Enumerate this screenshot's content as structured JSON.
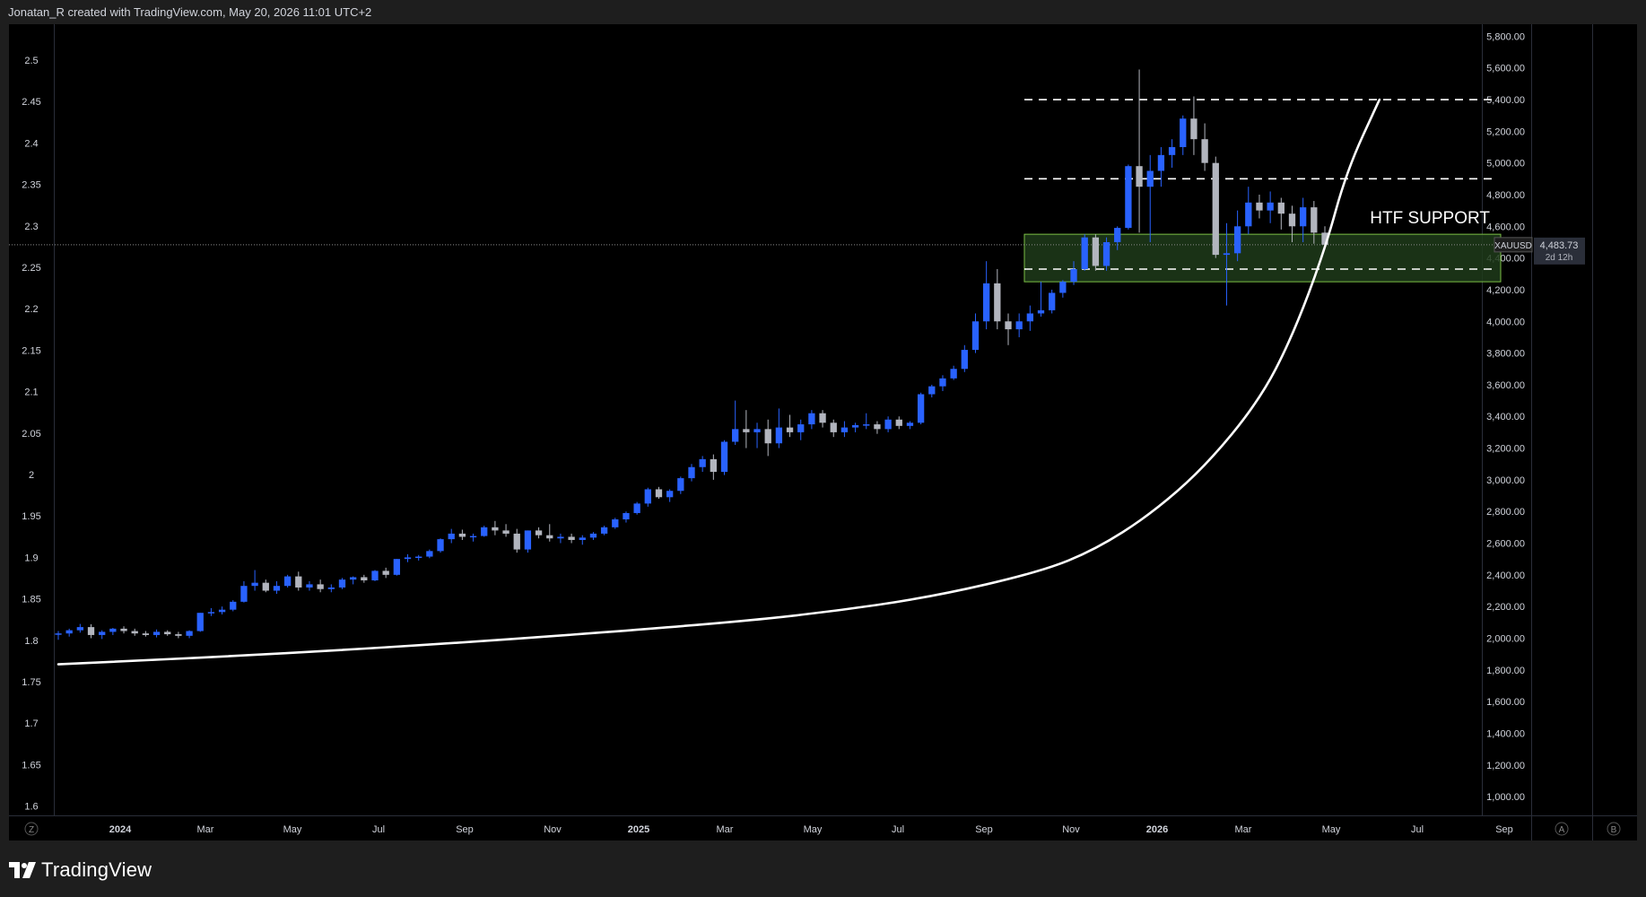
{
  "header": {
    "text": "Jonatan_R created with TradingView.com, May 20, 2026 11:01 UTC+2"
  },
  "footer": {
    "logo_text": "TradingView"
  },
  "chart_data": {
    "type": "candlestick",
    "symbol": "XAUUSD",
    "last_price": "4,483.73",
    "countdown": "2d 12h",
    "annotation": "HTF SUPPORT",
    "x_ticks": [
      "2024",
      "Mar",
      "May",
      "Jul",
      "Sep",
      "Nov",
      "2025",
      "Mar",
      "May",
      "Jul",
      "Sep",
      "Nov",
      "2026",
      "Mar",
      "May",
      "Jul",
      "Sep"
    ],
    "left_axis": {
      "ticks": [
        "2.5",
        "2.45",
        "2.4",
        "2.35",
        "2.3",
        "2.25",
        "2.2",
        "2.15",
        "2.1",
        "2.05",
        "2",
        "1.95",
        "1.9",
        "1.85",
        "1.8",
        "1.75",
        "1.7",
        "1.65",
        "1.6"
      ],
      "scale": "log10"
    },
    "right_axis": {
      "ticks": [
        "5,800.00",
        "5,600.00",
        "5,400.00",
        "5,200.00",
        "5,000.00",
        "4,800.00",
        "4,600.00",
        "4,400.00",
        "4,200.00",
        "4,000.00",
        "3,800.00",
        "3,600.00",
        "3,400.00",
        "3,200.00",
        "3,000.00",
        "2,800.00",
        "2,600.00",
        "2,400.00",
        "2,200.00",
        "2,000.00",
        "1,800.00",
        "1,600.00",
        "1,400.00",
        "1,200.00",
        "1,000.00"
      ]
    },
    "bottom_left_button": "Z",
    "bottom_right_buttons": [
      "A",
      "B"
    ],
    "candles": [
      {
        "o": 2024,
        "h": 2045,
        "l": 1990,
        "c": 2030
      },
      {
        "o": 2030,
        "h": 2060,
        "l": 2010,
        "c": 2050
      },
      {
        "o": 2050,
        "h": 2090,
        "l": 2035,
        "c": 2070
      },
      {
        "o": 2070,
        "h": 2088,
        "l": 2000,
        "c": 2020
      },
      {
        "o": 2020,
        "h": 2050,
        "l": 1995,
        "c": 2040
      },
      {
        "o": 2040,
        "h": 2065,
        "l": 2020,
        "c": 2060
      },
      {
        "o": 2060,
        "h": 2075,
        "l": 2030,
        "c": 2045
      },
      {
        "o": 2045,
        "h": 2060,
        "l": 2015,
        "c": 2030
      },
      {
        "o": 2030,
        "h": 2045,
        "l": 2010,
        "c": 2020
      },
      {
        "o": 2020,
        "h": 2055,
        "l": 2005,
        "c": 2040
      },
      {
        "o": 2040,
        "h": 2050,
        "l": 2015,
        "c": 2025
      },
      {
        "o": 2025,
        "h": 2040,
        "l": 2000,
        "c": 2015
      },
      {
        "o": 2015,
        "h": 2050,
        "l": 2000,
        "c": 2045
      },
      {
        "o": 2045,
        "h": 2160,
        "l": 2040,
        "c": 2160
      },
      {
        "o": 2160,
        "h": 2190,
        "l": 2140,
        "c": 2165
      },
      {
        "o": 2165,
        "h": 2200,
        "l": 2150,
        "c": 2180
      },
      {
        "o": 2180,
        "h": 2240,
        "l": 2170,
        "c": 2230
      },
      {
        "o": 2230,
        "h": 2360,
        "l": 2225,
        "c": 2330
      },
      {
        "o": 2330,
        "h": 2430,
        "l": 2300,
        "c": 2350
      },
      {
        "o": 2350,
        "h": 2370,
        "l": 2290,
        "c": 2300
      },
      {
        "o": 2300,
        "h": 2360,
        "l": 2280,
        "c": 2330
      },
      {
        "o": 2330,
        "h": 2400,
        "l": 2320,
        "c": 2390
      },
      {
        "o": 2390,
        "h": 2420,
        "l": 2300,
        "c": 2320
      },
      {
        "o": 2320,
        "h": 2360,
        "l": 2300,
        "c": 2340
      },
      {
        "o": 2340,
        "h": 2370,
        "l": 2290,
        "c": 2310
      },
      {
        "o": 2310,
        "h": 2340,
        "l": 2290,
        "c": 2320
      },
      {
        "o": 2320,
        "h": 2380,
        "l": 2310,
        "c": 2370
      },
      {
        "o": 2370,
        "h": 2390,
        "l": 2340,
        "c": 2385
      },
      {
        "o": 2385,
        "h": 2400,
        "l": 2350,
        "c": 2365
      },
      {
        "o": 2365,
        "h": 2430,
        "l": 2360,
        "c": 2425
      },
      {
        "o": 2425,
        "h": 2445,
        "l": 2380,
        "c": 2400
      },
      {
        "o": 2400,
        "h": 2500,
        "l": 2395,
        "c": 2500
      },
      {
        "o": 2500,
        "h": 2530,
        "l": 2480,
        "c": 2510
      },
      {
        "o": 2510,
        "h": 2525,
        "l": 2490,
        "c": 2515
      },
      {
        "o": 2515,
        "h": 2560,
        "l": 2505,
        "c": 2550
      },
      {
        "o": 2550,
        "h": 2630,
        "l": 2540,
        "c": 2625
      },
      {
        "o": 2625,
        "h": 2690,
        "l": 2600,
        "c": 2660
      },
      {
        "o": 2660,
        "h": 2685,
        "l": 2620,
        "c": 2640
      },
      {
        "o": 2640,
        "h": 2660,
        "l": 2610,
        "c": 2645
      },
      {
        "o": 2645,
        "h": 2710,
        "l": 2640,
        "c": 2700
      },
      {
        "o": 2700,
        "h": 2740,
        "l": 2650,
        "c": 2680
      },
      {
        "o": 2680,
        "h": 2720,
        "l": 2640,
        "c": 2660
      },
      {
        "o": 2660,
        "h": 2690,
        "l": 2540,
        "c": 2560
      },
      {
        "o": 2560,
        "h": 2680,
        "l": 2540,
        "c": 2680
      },
      {
        "o": 2680,
        "h": 2700,
        "l": 2630,
        "c": 2650
      },
      {
        "o": 2650,
        "h": 2720,
        "l": 2610,
        "c": 2630
      },
      {
        "o": 2630,
        "h": 2660,
        "l": 2600,
        "c": 2640
      },
      {
        "o": 2640,
        "h": 2660,
        "l": 2600,
        "c": 2620
      },
      {
        "o": 2620,
        "h": 2650,
        "l": 2590,
        "c": 2635
      },
      {
        "o": 2635,
        "h": 2670,
        "l": 2620,
        "c": 2660
      },
      {
        "o": 2660,
        "h": 2710,
        "l": 2650,
        "c": 2700
      },
      {
        "o": 2700,
        "h": 2760,
        "l": 2690,
        "c": 2750
      },
      {
        "o": 2750,
        "h": 2800,
        "l": 2730,
        "c": 2790
      },
      {
        "o": 2790,
        "h": 2860,
        "l": 2780,
        "c": 2850
      },
      {
        "o": 2850,
        "h": 2950,
        "l": 2830,
        "c": 2940
      },
      {
        "o": 2940,
        "h": 2955,
        "l": 2880,
        "c": 2890
      },
      {
        "o": 2890,
        "h": 2940,
        "l": 2860,
        "c": 2930
      },
      {
        "o": 2930,
        "h": 3020,
        "l": 2910,
        "c": 3010
      },
      {
        "o": 3010,
        "h": 3100,
        "l": 2990,
        "c": 3080
      },
      {
        "o": 3080,
        "h": 3150,
        "l": 3050,
        "c": 3130
      },
      {
        "o": 3130,
        "h": 3160,
        "l": 3000,
        "c": 3050
      },
      {
        "o": 3050,
        "h": 3250,
        "l": 3030,
        "c": 3240
      },
      {
        "o": 3240,
        "h": 3500,
        "l": 3220,
        "c": 3320
      },
      {
        "o": 3320,
        "h": 3440,
        "l": 3200,
        "c": 3300
      },
      {
        "o": 3300,
        "h": 3360,
        "l": 3200,
        "c": 3320
      },
      {
        "o": 3320,
        "h": 3380,
        "l": 3150,
        "c": 3230
      },
      {
        "o": 3230,
        "h": 3450,
        "l": 3200,
        "c": 3330
      },
      {
        "o": 3330,
        "h": 3410,
        "l": 3270,
        "c": 3300
      },
      {
        "o": 3300,
        "h": 3380,
        "l": 3250,
        "c": 3350
      },
      {
        "o": 3350,
        "h": 3440,
        "l": 3320,
        "c": 3420
      },
      {
        "o": 3420,
        "h": 3440,
        "l": 3330,
        "c": 3360
      },
      {
        "o": 3360,
        "h": 3380,
        "l": 3270,
        "c": 3300
      },
      {
        "o": 3300,
        "h": 3370,
        "l": 3270,
        "c": 3330
      },
      {
        "o": 3330,
        "h": 3360,
        "l": 3300,
        "c": 3345
      },
      {
        "o": 3345,
        "h": 3420,
        "l": 3320,
        "c": 3350
      },
      {
        "o": 3350,
        "h": 3370,
        "l": 3290,
        "c": 3320
      },
      {
        "o": 3320,
        "h": 3400,
        "l": 3300,
        "c": 3380
      },
      {
        "o": 3380,
        "h": 3400,
        "l": 3320,
        "c": 3340
      },
      {
        "o": 3340,
        "h": 3370,
        "l": 3320,
        "c": 3360
      },
      {
        "o": 3360,
        "h": 3550,
        "l": 3350,
        "c": 3540
      },
      {
        "o": 3540,
        "h": 3600,
        "l": 3520,
        "c": 3590
      },
      {
        "o": 3590,
        "h": 3660,
        "l": 3560,
        "c": 3640
      },
      {
        "o": 3640,
        "h": 3720,
        "l": 3630,
        "c": 3700
      },
      {
        "o": 3700,
        "h": 3850,
        "l": 3680,
        "c": 3820
      },
      {
        "o": 3820,
        "h": 4050,
        "l": 3800,
        "c": 4000
      },
      {
        "o": 4000,
        "h": 4380,
        "l": 3950,
        "c": 4240
      },
      {
        "o": 4240,
        "h": 4330,
        "l": 3950,
        "c": 4000
      },
      {
        "o": 4000,
        "h": 4050,
        "l": 3850,
        "c": 3950
      },
      {
        "o": 3950,
        "h": 4050,
        "l": 3900,
        "c": 4000
      },
      {
        "o": 4000,
        "h": 4100,
        "l": 3940,
        "c": 4050
      },
      {
        "o": 4050,
        "h": 4250,
        "l": 4030,
        "c": 4070
      },
      {
        "o": 4070,
        "h": 4200,
        "l": 4050,
        "c": 4180
      },
      {
        "o": 4180,
        "h": 4260,
        "l": 4150,
        "c": 4250
      },
      {
        "o": 4250,
        "h": 4380,
        "l": 4230,
        "c": 4330
      },
      {
        "o": 4330,
        "h": 4550,
        "l": 4320,
        "c": 4530
      },
      {
        "o": 4530,
        "h": 4550,
        "l": 4320,
        "c": 4350
      },
      {
        "o": 4350,
        "h": 4530,
        "l": 4320,
        "c": 4500
      },
      {
        "o": 4500,
        "h": 4600,
        "l": 4450,
        "c": 4590
      },
      {
        "o": 4590,
        "h": 4990,
        "l": 4580,
        "c": 4980
      },
      {
        "o": 4980,
        "h": 5590,
        "l": 4560,
        "c": 4850
      },
      {
        "o": 4850,
        "h": 5050,
        "l": 4500,
        "c": 4950
      },
      {
        "o": 4950,
        "h": 5100,
        "l": 4850,
        "c": 5050
      },
      {
        "o": 5050,
        "h": 5150,
        "l": 4970,
        "c": 5100
      },
      {
        "o": 5100,
        "h": 5300,
        "l": 5050,
        "c": 5280
      },
      {
        "o": 5280,
        "h": 5420,
        "l": 5050,
        "c": 5150
      },
      {
        "o": 5150,
        "h": 5250,
        "l": 4950,
        "c": 5000
      },
      {
        "o": 5000,
        "h": 5040,
        "l": 4400,
        "c": 4420
      },
      {
        "o": 4420,
        "h": 4620,
        "l": 4100,
        "c": 4430
      },
      {
        "o": 4430,
        "h": 4700,
        "l": 4380,
        "c": 4600
      },
      {
        "o": 4600,
        "h": 4850,
        "l": 4550,
        "c": 4750
      },
      {
        "o": 4750,
        "h": 4800,
        "l": 4650,
        "c": 4700
      },
      {
        "o": 4700,
        "h": 4820,
        "l": 4620,
        "c": 4750
      },
      {
        "o": 4750,
        "h": 4780,
        "l": 4580,
        "c": 4680
      },
      {
        "o": 4680,
        "h": 4730,
        "l": 4500,
        "c": 4600
      },
      {
        "o": 4600,
        "h": 4780,
        "l": 4500,
        "c": 4720
      },
      {
        "o": 4720,
        "h": 4760,
        "l": 4490,
        "c": 4560
      },
      {
        "o": 4560,
        "h": 4600,
        "l": 4460,
        "c": 4484
      }
    ],
    "support_zone": {
      "low": 4250,
      "high": 4550,
      "color": "#1f3b1a"
    },
    "levels": [
      5400,
      4900,
      4330
    ],
    "curve": [
      [
        0,
        1835
      ],
      [
        20,
        1900
      ],
      [
        40,
        1985
      ],
      [
        60,
        2090
      ],
      [
        70,
        2160
      ],
      [
        80,
        2260
      ],
      [
        90,
        2420
      ],
      [
        95,
        2560
      ],
      [
        100,
        2780
      ],
      [
        105,
        3080
      ],
      [
        110,
        3500
      ],
      [
        113,
        3900
      ],
      [
        116,
        4450
      ],
      [
        118,
        4950
      ],
      [
        121,
        5400
      ]
    ],
    "colors": {
      "up": "#2962ff",
      "down": "#b2b5be",
      "background": "#000000",
      "frame": "#1e1e1e",
      "zone_border": "#7bbf45",
      "text": "#d1d4dc"
    }
  }
}
